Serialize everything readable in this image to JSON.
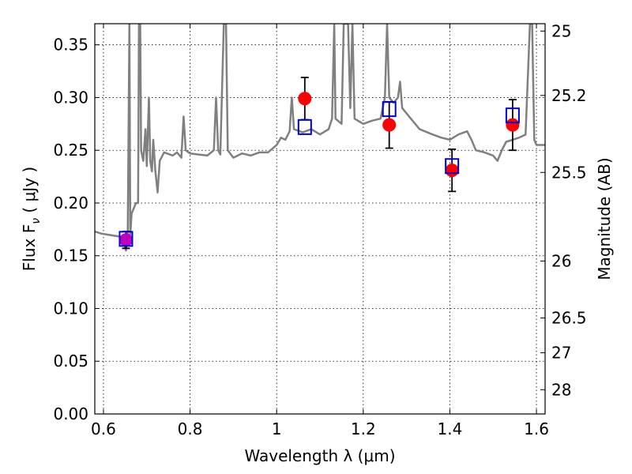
{
  "chart_data": {
    "type": "scatter",
    "xlabel": "Wavelength  λ (μm)",
    "ylabel": "Flux  F",
    "ylabel_sub": "ν",
    "ylabel_unit": "  ( μJy )",
    "ylabel_right": "Magnitude (AB)",
    "xlim": [
      0.58,
      1.62
    ],
    "ylim": [
      0.0,
      0.37
    ],
    "grid": true,
    "x_ticks": [
      0.6,
      0.8,
      1.0,
      1.2,
      1.4,
      1.6
    ],
    "x_tick_labels": [
      "0.6",
      "0.8",
      "1",
      "1.2",
      "1.4",
      "1.6"
    ],
    "y_ticks": [
      0.0,
      0.05,
      0.1,
      0.15,
      0.2,
      0.25,
      0.3,
      0.35
    ],
    "y_tick_labels": [
      "0.00",
      "0.05",
      "0.10",
      "0.15",
      "0.20",
      "0.25",
      "0.30",
      "0.35"
    ],
    "right_ticks": [
      {
        "label": "25",
        "flux": 0.363
      },
      {
        "label": "25.2",
        "flux": 0.302
      },
      {
        "label": "25.5",
        "flux": 0.229
      },
      {
        "label": "26",
        "flux": 0.145
      },
      {
        "label": "26.5",
        "flux": 0.091
      },
      {
        "label": "27",
        "flux": 0.058
      },
      {
        "label": "28",
        "flux": 0.023
      }
    ],
    "series": [
      {
        "style": "line",
        "color": "#808080",
        "points": [
          [
            0.58,
            0.173
          ],
          [
            0.595,
            0.171
          ],
          [
            0.61,
            0.17
          ],
          [
            0.625,
            0.169
          ],
          [
            0.64,
            0.168
          ],
          [
            0.648,
            0.16
          ],
          [
            0.652,
            0.155
          ],
          [
            0.656,
            0.17
          ],
          [
            0.66,
            0.37
          ],
          [
            0.662,
            0.17
          ],
          [
            0.665,
            0.19
          ],
          [
            0.675,
            0.2
          ],
          [
            0.68,
            0.2
          ],
          [
            0.682,
            0.37
          ],
          [
            0.685,
            0.37
          ],
          [
            0.687,
            0.25
          ],
          [
            0.692,
            0.24
          ],
          [
            0.697,
            0.27
          ],
          [
            0.7,
            0.235
          ],
          [
            0.705,
            0.3
          ],
          [
            0.708,
            0.24
          ],
          [
            0.712,
            0.23
          ],
          [
            0.715,
            0.26
          ],
          [
            0.72,
            0.23
          ],
          [
            0.725,
            0.21
          ],
          [
            0.73,
            0.24
          ],
          [
            0.74,
            0.248
          ],
          [
            0.76,
            0.245
          ],
          [
            0.77,
            0.248
          ],
          [
            0.78,
            0.243
          ],
          [
            0.785,
            0.282
          ],
          [
            0.79,
            0.25
          ],
          [
            0.8,
            0.247
          ],
          [
            0.82,
            0.246
          ],
          [
            0.84,
            0.245
          ],
          [
            0.855,
            0.25
          ],
          [
            0.86,
            0.3
          ],
          [
            0.865,
            0.25
          ],
          [
            0.87,
            0.246
          ],
          [
            0.878,
            0.37
          ],
          [
            0.883,
            0.37
          ],
          [
            0.887,
            0.25
          ],
          [
            0.9,
            0.243
          ],
          [
            0.92,
            0.247
          ],
          [
            0.94,
            0.245
          ],
          [
            0.96,
            0.248
          ],
          [
            0.98,
            0.248
          ],
          [
            1.0,
            0.255
          ],
          [
            1.01,
            0.262
          ],
          [
            1.02,
            0.26
          ],
          [
            1.03,
            0.268
          ],
          [
            1.035,
            0.3
          ],
          [
            1.04,
            0.27
          ],
          [
            1.06,
            0.267
          ],
          [
            1.08,
            0.27
          ],
          [
            1.1,
            0.265
          ],
          [
            1.12,
            0.27
          ],
          [
            1.128,
            0.28
          ],
          [
            1.133,
            0.37
          ],
          [
            1.136,
            0.28
          ],
          [
            1.15,
            0.275
          ],
          [
            1.155,
            0.37
          ],
          [
            1.165,
            0.37
          ],
          [
            1.17,
            0.29
          ],
          [
            1.175,
            0.37
          ],
          [
            1.18,
            0.28
          ],
          [
            1.2,
            0.275
          ],
          [
            1.22,
            0.278
          ],
          [
            1.24,
            0.28
          ],
          [
            1.25,
            0.3
          ],
          [
            1.255,
            0.37
          ],
          [
            1.26,
            0.3
          ],
          [
            1.27,
            0.295
          ],
          [
            1.28,
            0.3
          ],
          [
            1.285,
            0.315
          ],
          [
            1.29,
            0.29
          ],
          [
            1.31,
            0.28
          ],
          [
            1.33,
            0.27
          ],
          [
            1.36,
            0.265
          ],
          [
            1.38,
            0.262
          ],
          [
            1.4,
            0.26
          ],
          [
            1.42,
            0.265
          ],
          [
            1.44,
            0.268
          ],
          [
            1.45,
            0.26
          ],
          [
            1.46,
            0.25
          ],
          [
            1.48,
            0.248
          ],
          [
            1.5,
            0.245
          ],
          [
            1.51,
            0.24
          ],
          [
            1.52,
            0.25
          ],
          [
            1.53,
            0.258
          ],
          [
            1.545,
            0.26
          ],
          [
            1.56,
            0.262
          ],
          [
            1.575,
            0.265
          ],
          [
            1.585,
            0.37
          ],
          [
            1.59,
            0.37
          ],
          [
            1.595,
            0.26
          ],
          [
            1.6,
            0.255
          ],
          [
            1.62,
            0.255
          ]
        ]
      },
      {
        "style": "points",
        "marker": "circle",
        "color": "#ff0000",
        "points": [
          {
            "x": 1.065,
            "y": 0.299,
            "err": 0.02
          },
          {
            "x": 1.26,
            "y": 0.274,
            "err": 0.022
          },
          {
            "x": 1.405,
            "y": 0.231,
            "err": 0.02
          },
          {
            "x": 1.545,
            "y": 0.274,
            "err": 0.024
          }
        ]
      },
      {
        "style": "points",
        "marker": "circle",
        "color": "#bf00bf",
        "points": [
          {
            "x": 0.652,
            "y": 0.165,
            "err": 0.008
          }
        ]
      },
      {
        "style": "points",
        "marker": "square-open",
        "color": "#0000cc",
        "points": [
          {
            "x": 0.652,
            "y": 0.166
          },
          {
            "x": 1.065,
            "y": 0.272
          },
          {
            "x": 1.26,
            "y": 0.289
          },
          {
            "x": 1.405,
            "y": 0.235
          },
          {
            "x": 1.545,
            "y": 0.283
          }
        ]
      }
    ]
  }
}
